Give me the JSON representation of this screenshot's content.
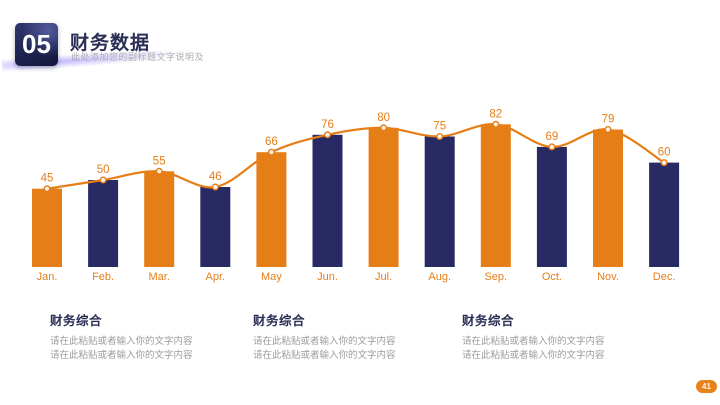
{
  "colors": {
    "accent_orange": "#E67E17",
    "navy_bar": "#282B63",
    "title_text": "#2B2E55",
    "subtitle_gray": "#AEAEAE",
    "body_gray": "#9B9B9B",
    "badge_orange": "#E8821B"
  },
  "header": {
    "section_number": "05",
    "title": "财务数据",
    "subtitle": "此处添加您的副标题文字说明及"
  },
  "chart_data": {
    "type": "bar",
    "overlay_line": true,
    "title": "",
    "xlabel": "",
    "ylabel": "",
    "categories": [
      "Jan.",
      "Feb.",
      "Mar.",
      "Apr.",
      "May",
      "Jun.",
      "Jul.",
      "Aug.",
      "Sep.",
      "Oct.",
      "Nov.",
      "Dec."
    ],
    "values": [
      45,
      50,
      55,
      46,
      66,
      76,
      80,
      75,
      82,
      69,
      79,
      60
    ],
    "ylim": [
      0,
      90
    ],
    "grid": false,
    "legend": false,
    "data_labels_shown": true,
    "colors": {
      "bar_alternating": [
        "#E67E17",
        "#282B63"
      ],
      "line": "#E67E17",
      "marker_fill": "#FDF2E5",
      "value_labels": "#E67E17",
      "category_labels": "#E67E17"
    }
  },
  "sections": [
    {
      "heading": "财务综合",
      "lines": [
        "请在此粘贴或者输入你的文字内容",
        "请在此粘贴或者输入你的文字内容"
      ]
    },
    {
      "heading": "财务综合",
      "lines": [
        "请在此粘贴或者输入你的文字内容",
        "请在此粘贴或者输入你的文字内容"
      ]
    },
    {
      "heading": "财务综合",
      "lines": [
        "请在此粘贴或者输入你的文字内容",
        "请在此粘贴或者输入你的文字内容"
      ]
    }
  ],
  "footer": {
    "page_number": "41"
  }
}
